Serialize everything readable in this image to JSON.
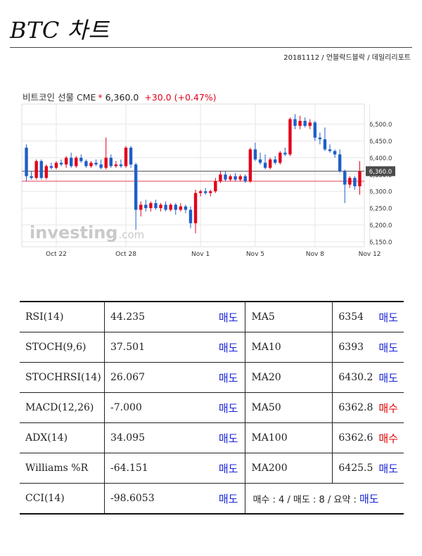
{
  "page": {
    "title": "BTC 차트",
    "meta": "20181112 / 언블락드블락 / 데일리리포트"
  },
  "chart_header": {
    "instrument": "비트코인 선물 CME",
    "star": "*",
    "price": "6,360.0",
    "change": "+30.0 (+0.47%)"
  },
  "watermark": {
    "main": "investing",
    "suffix": ".com"
  },
  "colors": {
    "up": "#e2001a",
    "down": "#1e5fc8",
    "grid": "#e6e6e6",
    "price_line": "#555555",
    "prev_close_line": "#e2001a",
    "price_tag_bg": "#4b4b4b",
    "sell": "#1a25d6",
    "buy": "#e00000"
  },
  "chart_data": {
    "type": "candlestick",
    "title": "비트코인 선물 CME",
    "ylim": [
      6135,
      6560
    ],
    "yticks": [
      6150,
      6200,
      6250,
      6300,
      6350,
      6400,
      6450,
      6500
    ],
    "ytick_labels": [
      "6,150.0",
      "6,200.0",
      "6,250.0",
      "6,300.0",
      "6,350.0",
      "6,400.0",
      "6,450.0",
      "6,500.0"
    ],
    "current_price": 6360,
    "current_price_label": "6,360.0",
    "prev_close": 6330,
    "x_labels": [
      {
        "index": 6,
        "label": "Oct 22"
      },
      {
        "index": 20,
        "label": "Oct 28"
      },
      {
        "index": 35,
        "label": "Nov 1"
      },
      {
        "index": 46,
        "label": "Nov 5"
      },
      {
        "index": 58,
        "label": "Nov 8"
      },
      {
        "index": 69,
        "label": "Nov 12"
      }
    ],
    "candles": [
      {
        "o": 6430,
        "h": 6440,
        "l": 6330,
        "c": 6345
      },
      {
        "o": 6345,
        "h": 6360,
        "l": 6335,
        "c": 6340
      },
      {
        "o": 6340,
        "h": 6395,
        "l": 6335,
        "c": 6390
      },
      {
        "o": 6390,
        "h": 6395,
        "l": 6335,
        "c": 6340
      },
      {
        "o": 6340,
        "h": 6380,
        "l": 6335,
        "c": 6375
      },
      {
        "o": 6375,
        "h": 6385,
        "l": 6365,
        "c": 6370
      },
      {
        "o": 6370,
        "h": 6390,
        "l": 6365,
        "c": 6385
      },
      {
        "o": 6385,
        "h": 6395,
        "l": 6375,
        "c": 6380
      },
      {
        "o": 6380,
        "h": 6405,
        "l": 6370,
        "c": 6400
      },
      {
        "o": 6400,
        "h": 6415,
        "l": 6370,
        "c": 6375
      },
      {
        "o": 6375,
        "h": 6405,
        "l": 6370,
        "c": 6400
      },
      {
        "o": 6400,
        "h": 6410,
        "l": 6385,
        "c": 6390
      },
      {
        "o": 6390,
        "h": 6395,
        "l": 6370,
        "c": 6375
      },
      {
        "o": 6375,
        "h": 6390,
        "l": 6370,
        "c": 6385
      },
      {
        "o": 6385,
        "h": 6395,
        "l": 6375,
        "c": 6380
      },
      {
        "o": 6380,
        "h": 6395,
        "l": 6365,
        "c": 6370
      },
      {
        "o": 6370,
        "h": 6460,
        "l": 6365,
        "c": 6400
      },
      {
        "o": 6400,
        "h": 6410,
        "l": 6370,
        "c": 6375
      },
      {
        "o": 6375,
        "h": 6390,
        "l": 6370,
        "c": 6380
      },
      {
        "o": 6380,
        "h": 6395,
        "l": 6370,
        "c": 6375
      },
      {
        "o": 6375,
        "h": 6435,
        "l": 6370,
        "c": 6430
      },
      {
        "o": 6430,
        "h": 6435,
        "l": 6370,
        "c": 6380
      },
      {
        "o": 6380,
        "h": 6385,
        "l": 6185,
        "c": 6245
      },
      {
        "o": 6245,
        "h": 6270,
        "l": 6225,
        "c": 6260
      },
      {
        "o": 6260,
        "h": 6275,
        "l": 6240,
        "c": 6250
      },
      {
        "o": 6250,
        "h": 6270,
        "l": 6240,
        "c": 6265
      },
      {
        "o": 6265,
        "h": 6275,
        "l": 6245,
        "c": 6250
      },
      {
        "o": 6250,
        "h": 6265,
        "l": 6240,
        "c": 6260
      },
      {
        "o": 6260,
        "h": 6270,
        "l": 6240,
        "c": 6245
      },
      {
        "o": 6245,
        "h": 6265,
        "l": 6240,
        "c": 6260
      },
      {
        "o": 6260,
        "h": 6265,
        "l": 6230,
        "c": 6245
      },
      {
        "o": 6245,
        "h": 6265,
        "l": 6240,
        "c": 6255
      },
      {
        "o": 6255,
        "h": 6260,
        "l": 6235,
        "c": 6245
      },
      {
        "o": 6245,
        "h": 6255,
        "l": 6190,
        "c": 6205
      },
      {
        "o": 6205,
        "h": 6305,
        "l": 6175,
        "c": 6295
      },
      {
        "o": 6295,
        "h": 6305,
        "l": 6285,
        "c": 6300
      },
      {
        "o": 6300,
        "h": 6310,
        "l": 6290,
        "c": 6295
      },
      {
        "o": 6295,
        "h": 6305,
        "l": 6285,
        "c": 6300
      },
      {
        "o": 6300,
        "h": 6340,
        "l": 6295,
        "c": 6330
      },
      {
        "o": 6330,
        "h": 6360,
        "l": 6325,
        "c": 6350
      },
      {
        "o": 6350,
        "h": 6360,
        "l": 6330,
        "c": 6335
      },
      {
        "o": 6335,
        "h": 6350,
        "l": 6330,
        "c": 6345
      },
      {
        "o": 6345,
        "h": 6355,
        "l": 6330,
        "c": 6335
      },
      {
        "o": 6335,
        "h": 6350,
        "l": 6330,
        "c": 6345
      },
      {
        "o": 6345,
        "h": 6350,
        "l": 6325,
        "c": 6330
      },
      {
        "o": 6330,
        "h": 6430,
        "l": 6325,
        "c": 6425
      },
      {
        "o": 6425,
        "h": 6445,
        "l": 6390,
        "c": 6395
      },
      {
        "o": 6395,
        "h": 6415,
        "l": 6380,
        "c": 6385
      },
      {
        "o": 6385,
        "h": 6410,
        "l": 6365,
        "c": 6370
      },
      {
        "o": 6370,
        "h": 6400,
        "l": 6365,
        "c": 6395
      },
      {
        "o": 6395,
        "h": 6405,
        "l": 6380,
        "c": 6385
      },
      {
        "o": 6385,
        "h": 6420,
        "l": 6380,
        "c": 6415
      },
      {
        "o": 6415,
        "h": 6430,
        "l": 6405,
        "c": 6410
      },
      {
        "o": 6410,
        "h": 6520,
        "l": 6405,
        "c": 6515
      },
      {
        "o": 6515,
        "h": 6530,
        "l": 6485,
        "c": 6495
      },
      {
        "o": 6495,
        "h": 6525,
        "l": 6485,
        "c": 6510
      },
      {
        "o": 6510,
        "h": 6520,
        "l": 6490,
        "c": 6495
      },
      {
        "o": 6495,
        "h": 6515,
        "l": 6485,
        "c": 6505
      },
      {
        "o": 6505,
        "h": 6510,
        "l": 6450,
        "c": 6460
      },
      {
        "o": 6460,
        "h": 6475,
        "l": 6440,
        "c": 6455
      },
      {
        "o": 6455,
        "h": 6490,
        "l": 6420,
        "c": 6425
      },
      {
        "o": 6425,
        "h": 6440,
        "l": 6415,
        "c": 6420
      },
      {
        "o": 6420,
        "h": 6425,
        "l": 6400,
        "c": 6410
      },
      {
        "o": 6410,
        "h": 6425,
        "l": 6355,
        "c": 6360
      },
      {
        "o": 6360,
        "h": 6365,
        "l": 6265,
        "c": 6320
      },
      {
        "o": 6320,
        "h": 6345,
        "l": 6310,
        "c": 6340
      },
      {
        "o": 6340,
        "h": 6345,
        "l": 6305,
        "c": 6315
      },
      {
        "o": 6315,
        "h": 6390,
        "l": 6290,
        "c": 6360
      }
    ]
  },
  "indicators": [
    {
      "left_name": "RSI(14)",
      "left_value": "44.235",
      "left_signal": "매도",
      "left_type": "sell",
      "right_name": "MA5",
      "right_value": "6354",
      "right_signal": "매도",
      "right_type": "sell"
    },
    {
      "left_name": "STOCH(9,6)",
      "left_value": "37.501",
      "left_signal": "매도",
      "left_type": "sell",
      "right_name": "MA10",
      "right_value": "6393",
      "right_signal": "매도",
      "right_type": "sell"
    },
    {
      "left_name": "STOCHRSI(14)",
      "left_value": "26.067",
      "left_signal": "매도",
      "left_type": "sell",
      "right_name": "MA20",
      "right_value": "6430.2",
      "right_signal": "매도",
      "right_type": "sell"
    },
    {
      "left_name": "MACD(12,26)",
      "left_value": "-7.000",
      "left_signal": "매도",
      "left_type": "sell",
      "right_name": "MA50",
      "right_value": "6362.8",
      "right_signal": "매수",
      "right_type": "buy"
    },
    {
      "left_name": "ADX(14)",
      "left_value": "34.095",
      "left_signal": "매도",
      "left_type": "sell",
      "right_name": "MA100",
      "right_value": "6362.6",
      "right_signal": "매수",
      "right_type": "buy"
    },
    {
      "left_name": "Williams %R",
      "left_value": "-64.151",
      "left_signal": "매도",
      "left_type": "sell",
      "right_name": "MA200",
      "right_value": "6425.5",
      "right_signal": "매도",
      "right_type": "sell"
    }
  ],
  "last_row": {
    "left_name": "CCI(14)",
    "left_value": "-98.6053",
    "left_signal": "매도",
    "left_type": "sell",
    "summary_text": "매수 : 4 / 매도 : 8 / 요약 : ",
    "summary_signal": "매도"
  }
}
